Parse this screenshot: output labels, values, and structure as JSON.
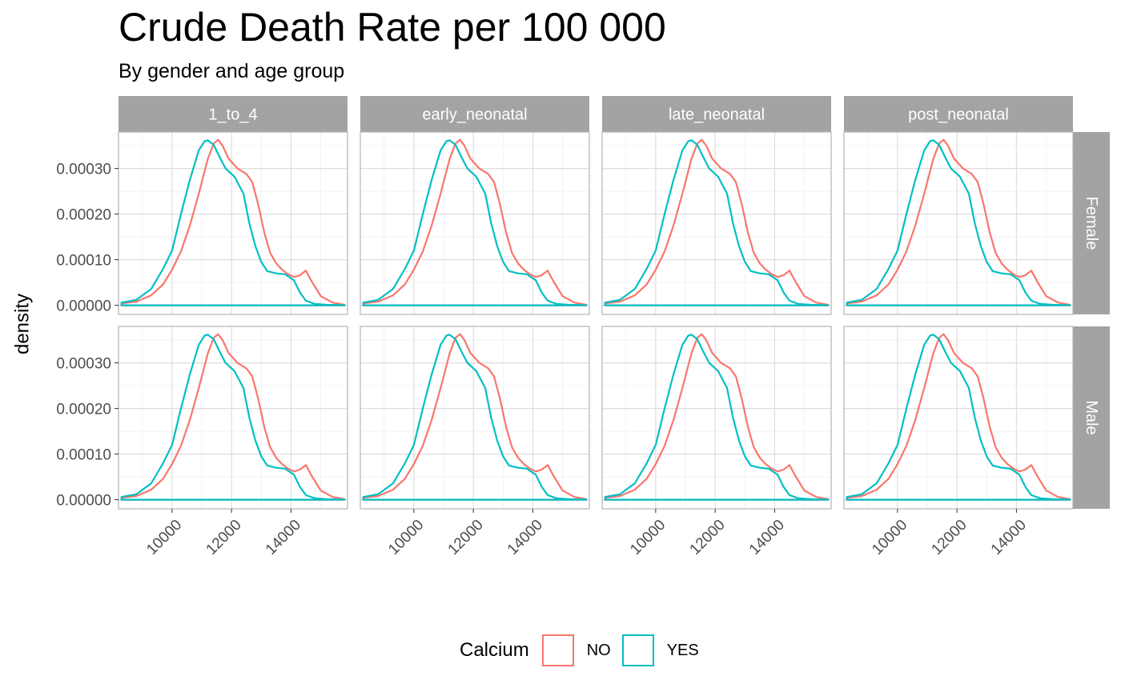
{
  "title": "Crude Death Rate per 100 000",
  "subtitle": "By gender and age group",
  "colors": {
    "strip_background": "#A3A3A3",
    "strip_text": "#FFFFFF",
    "grid_major": "#DEDEDE",
    "grid_minor": "#EFEFEF",
    "panel_border": "#B3B3B3",
    "axis_text": "#4D4D4D"
  },
  "chart_data": {
    "type": "line",
    "subtype": "density (faceted)",
    "ylabel": "density",
    "xlabel": "",
    "facet_columns": [
      "1_to_4",
      "early_neonatal",
      "late_neonatal",
      "post_neonatal"
    ],
    "facet_rows": [
      "Female",
      "Male"
    ],
    "x_ticks": [
      "10000",
      "12000",
      "14000"
    ],
    "y_ticks": [
      "0.00000",
      "0.00010",
      "0.00020",
      "0.00030"
    ],
    "xlim": [
      8200,
      15900
    ],
    "ylim": [
      -2e-05,
      0.00038
    ],
    "grid": true,
    "legend": {
      "title": "Calcium",
      "position": "bottom"
    },
    "series": [
      {
        "name": "NO",
        "color": "#F8766D",
        "x": [
          8300,
          8800,
          9300,
          9700,
          10000,
          10300,
          10600,
          10900,
          11200,
          11400,
          11550,
          11700,
          11900,
          12200,
          12500,
          12700,
          12900,
          13100,
          13300,
          13500,
          13700,
          13900,
          14100,
          14300,
          14500,
          14700,
          15000,
          15400,
          15800
        ],
        "values": [
          4e-06,
          8e-06,
          2.2e-05,
          4.6e-05,
          7.8e-05,
          0.000118,
          0.000175,
          0.000245,
          0.00032,
          0.000355,
          0.000363,
          0.00035,
          0.000322,
          0.0003,
          0.000288,
          0.00027,
          0.00022,
          0.00016,
          0.000115,
          9.2e-05,
          7.8e-05,
          6.8e-05,
          6.2e-05,
          6.6e-05,
          7.6e-05,
          5.2e-05,
          2e-05,
          6e-06,
          1e-06
        ]
      },
      {
        "name": "YES",
        "color": "#00BFC4",
        "x": [
          8300,
          8800,
          9300,
          9700,
          10000,
          10300,
          10600,
          10900,
          11100,
          11200,
          11400,
          11600,
          11800,
          12100,
          12400,
          12600,
          12800,
          13000,
          13200,
          13500,
          13800,
          14100,
          14300,
          14500,
          14800,
          15200,
          15800
        ],
        "values": [
          6e-06,
          1.2e-05,
          3.6e-05,
          8e-05,
          0.00012,
          0.0002,
          0.000275,
          0.00034,
          0.00036,
          0.000362,
          0.000352,
          0.000325,
          0.0003,
          0.000282,
          0.000245,
          0.00018,
          0.00013,
          9.5e-05,
          7.5e-05,
          7e-05,
          6.8e-05,
          5.5e-05,
          2.8e-05,
          1e-05,
          3e-06,
          1e-06,
          2e-07
        ]
      }
    ]
  }
}
